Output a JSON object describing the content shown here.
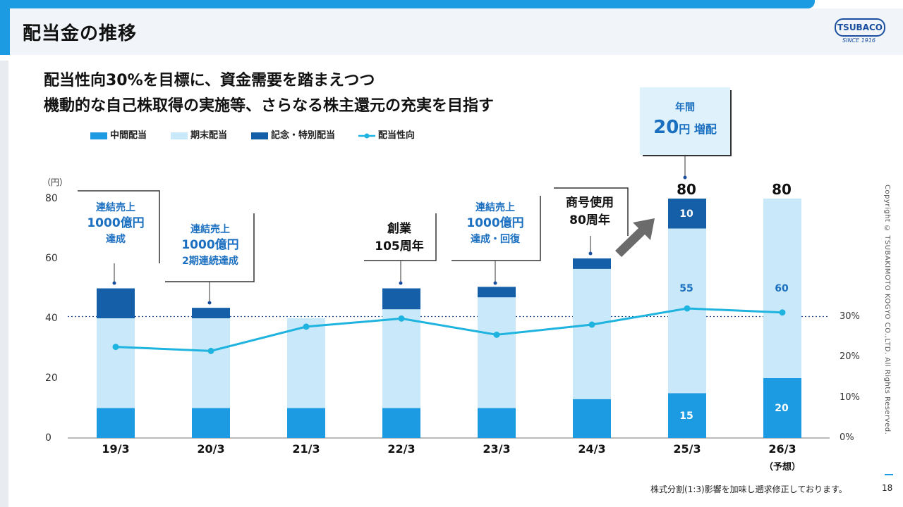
{
  "header": {
    "title": "配当金の推移"
  },
  "logo": {
    "name": "TSUBACO",
    "sub": "SINCE 1916"
  },
  "headline": {
    "line1": "配当性向30%を目標に、資金需要を踏まえつつ",
    "line2": "機動的な自己株取得の実施等、さらなる株主還元の充実を目指す"
  },
  "callout": {
    "line1": "年間",
    "amount": "20",
    "unit": "円 増配"
  },
  "notes": [
    {
      "lines": [
        "連結売上",
        "1000億円",
        "達成"
      ],
      "color": "blue"
    },
    {
      "lines": [
        "連結売上",
        "1000億円",
        "2期連続達成"
      ],
      "color": "blue"
    },
    {
      "lines": [
        "創業",
        "105周年"
      ],
      "color": "black"
    },
    {
      "lines": [
        "連結売上",
        "1000億円",
        "達成・回復"
      ],
      "color": "blue"
    },
    {
      "lines": [
        "商号使用",
        "80周年"
      ],
      "color": "black"
    }
  ],
  "chart_data": {
    "type": "bar",
    "y_unit": "（円）",
    "ylim": [
      0,
      80
    ],
    "y_ticks": [
      "0",
      "20",
      "40",
      "60",
      "80"
    ],
    "y2_ticks": [
      "0%",
      "10%",
      "20%",
      "30%"
    ],
    "categories": [
      "19/3",
      "20/3",
      "21/3",
      "22/3",
      "23/3",
      "24/3",
      "25/3",
      "26/3"
    ],
    "category_sub": [
      "",
      "",
      "",
      "",
      "",
      "",
      "",
      "（予想）"
    ],
    "series": [
      {
        "name": "中間配当",
        "color": "#1d9be2",
        "values": [
          10,
          10,
          10,
          10,
          10,
          13,
          15,
          20
        ]
      },
      {
        "name": "期末配当",
        "color": "#c9e9fa",
        "values": [
          30,
          30,
          30,
          33,
          37,
          43.5,
          55,
          60
        ]
      },
      {
        "name": "記念・特別配当",
        "color": "#155fa8",
        "values": [
          10,
          3.5,
          0,
          7,
          3.5,
          3.5,
          10,
          0
        ]
      }
    ],
    "line_series": {
      "name": "配当性向",
      "color": "#1fb3df",
      "values": [
        22.5,
        21.5,
        27.5,
        29.5,
        25.5,
        28,
        32,
        31
      ]
    },
    "y2lim": [
      0,
      35
    ],
    "target_line": 30,
    "totals": [
      "",
      "",
      "",
      "",
      "",
      "",
      "80",
      "80"
    ],
    "segment_labels": [
      {
        "index": 6,
        "series": 0,
        "text": "15"
      },
      {
        "index": 6,
        "series": 1,
        "text": "55"
      },
      {
        "index": 6,
        "series": 2,
        "text": "10"
      },
      {
        "index": 7,
        "series": 0,
        "text": "20"
      },
      {
        "index": 7,
        "series": 1,
        "text": "60"
      }
    ],
    "legend": "top-left",
    "grid": false
  },
  "copyright": "Copyright © TSUBAKIMOTO KOGYO CO.,LTD. All Rights Reserved.",
  "footnote": "株式分割(1:3)影響を加味し遡求修正しております。",
  "page_number": "18"
}
